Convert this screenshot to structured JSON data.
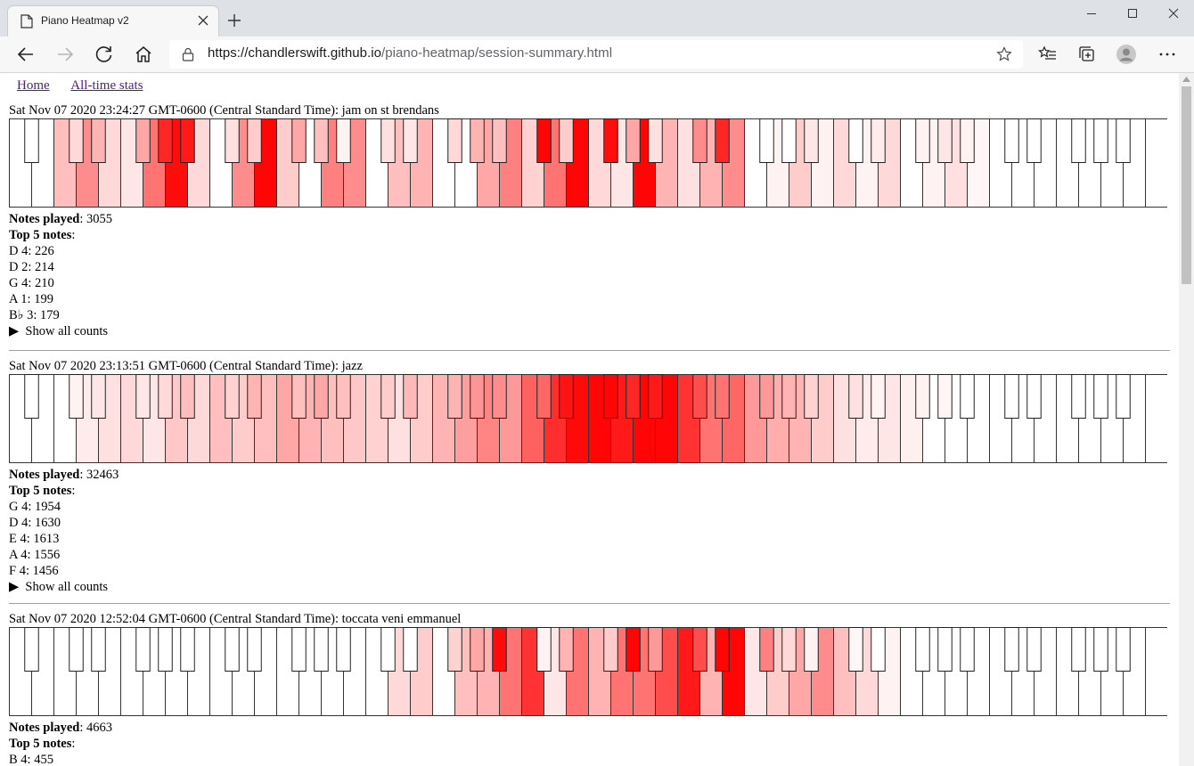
{
  "browser": {
    "tab_title": "Piano Heatmap v2",
    "url_host": "https://chandlerswift.github.io",
    "url_path": "/piano-heatmap/session-summary.html"
  },
  "nav": {
    "home": "Home",
    "all_time": "All-time stats"
  },
  "labels": {
    "notes_played": "Notes played",
    "top5": "Top 5 notes",
    "show_all": "Show all counts"
  },
  "sessions": [
    {
      "title": "Sat Nov 07 2020 23:24:27 GMT-0600 (Central Standard Time): jam on st brendans",
      "notes_played": "3055",
      "top_notes": [
        "D 4: 226",
        "D 2: 214",
        "G 4: 210",
        "A 1: 199",
        "B♭ 3: 179"
      ],
      "white_key_intensity": [
        0,
        0,
        0.25,
        0.45,
        0.15,
        0.1,
        0.55,
        0.95,
        0.15,
        0,
        0.45,
        0.98,
        0.2,
        0,
        0.5,
        0.45,
        0,
        0.25,
        0.3,
        0,
        0,
        0.35,
        0.5,
        0.18,
        0.55,
        0.98,
        0.15,
        0.1,
        0.98,
        0.3,
        0.12,
        0.3,
        0.45,
        0,
        0.05,
        0.2,
        0.05,
        0.15,
        0.05,
        0.15,
        0,
        0.05,
        0.12,
        0.03,
        0,
        0,
        0,
        0,
        0,
        0,
        0,
        0,
        0
      ],
      "black_key_intensity": [
        0,
        0.15,
        0.3,
        0.35,
        0.85,
        0.9,
        0.12,
        0.2,
        0.35,
        0.25,
        0.05,
        0.12,
        0.1,
        0.15,
        0.3,
        0.25,
        0.98,
        0.2,
        0.95,
        0.35,
        0.12,
        0.45,
        0.85,
        0,
        0,
        0.1,
        0,
        0.08,
        0.05,
        0.1,
        0.05,
        0,
        0,
        0,
        0,
        0,
        0
      ]
    },
    {
      "title": "Sat Nov 07 2020 23:13:51 GMT-0600 (Central Standard Time): jazz",
      "notes_played": "32463",
      "top_notes": [
        "G 4: 1954",
        "D 4: 1630",
        "E 4: 1613",
        "A 4: 1556",
        "F 4: 1456"
      ],
      "white_key_intensity": [
        0,
        0,
        0,
        0.08,
        0.12,
        0.15,
        0.1,
        0.22,
        0.15,
        0.25,
        0.2,
        0.25,
        0.35,
        0.3,
        0.25,
        0.22,
        0.18,
        0.12,
        0.2,
        0.3,
        0.38,
        0.48,
        0.4,
        0.62,
        0.82,
        0.96,
        0.98,
        0.9,
        0.98,
        0.98,
        0.8,
        0.55,
        0.6,
        0.4,
        0.32,
        0.3,
        0.2,
        0.12,
        0.08,
        0.1,
        0.06,
        0,
        0,
        0,
        0,
        0,
        0,
        0,
        0,
        0,
        0,
        0,
        0
      ],
      "black_key_intensity": [
        0,
        0.05,
        0.1,
        0.1,
        0.15,
        0.25,
        0.18,
        0.3,
        0.25,
        0.35,
        0.25,
        0.2,
        0.28,
        0.3,
        0.42,
        0.45,
        0.6,
        0.92,
        0.98,
        0.85,
        0.9,
        0.7,
        0.55,
        0.4,
        0.3,
        0.18,
        0.12,
        0.05,
        0.05,
        0.04,
        0,
        0,
        0,
        0,
        0,
        0,
        0
      ]
    },
    {
      "title": "Sat Nov 07 2020 12:52:04 GMT-0600 (Central Standard Time): toccata veni emmanuel",
      "notes_played": "4663",
      "top_notes": [
        "B 4: 455"
      ],
      "white_key_intensity": [
        0,
        0,
        0,
        0,
        0,
        0,
        0,
        0,
        0,
        0,
        0,
        0,
        0,
        0,
        0,
        0,
        0,
        0.15,
        0.2,
        0,
        0.25,
        0.3,
        0.55,
        0.8,
        0.1,
        0.55,
        0.3,
        0.55,
        0.55,
        0.7,
        0.9,
        0.3,
        0.98,
        0.1,
        0.2,
        0.35,
        0.45,
        0.25,
        0.15,
        0.05,
        0,
        0,
        0,
        0,
        0,
        0,
        0,
        0,
        0,
        0,
        0,
        0,
        0
      ],
      "black_key_intensity": [
        0,
        0,
        0,
        0,
        0,
        0,
        0,
        0,
        0,
        0,
        0,
        0,
        0,
        0.18,
        0.35,
        0.95,
        0.05,
        0.3,
        0.2,
        0.98,
        0.4,
        0.7,
        0.98,
        0.5,
        0.15,
        0.05,
        0.03,
        0,
        0,
        0,
        0,
        0,
        0,
        0,
        0,
        0,
        0
      ]
    }
  ]
}
